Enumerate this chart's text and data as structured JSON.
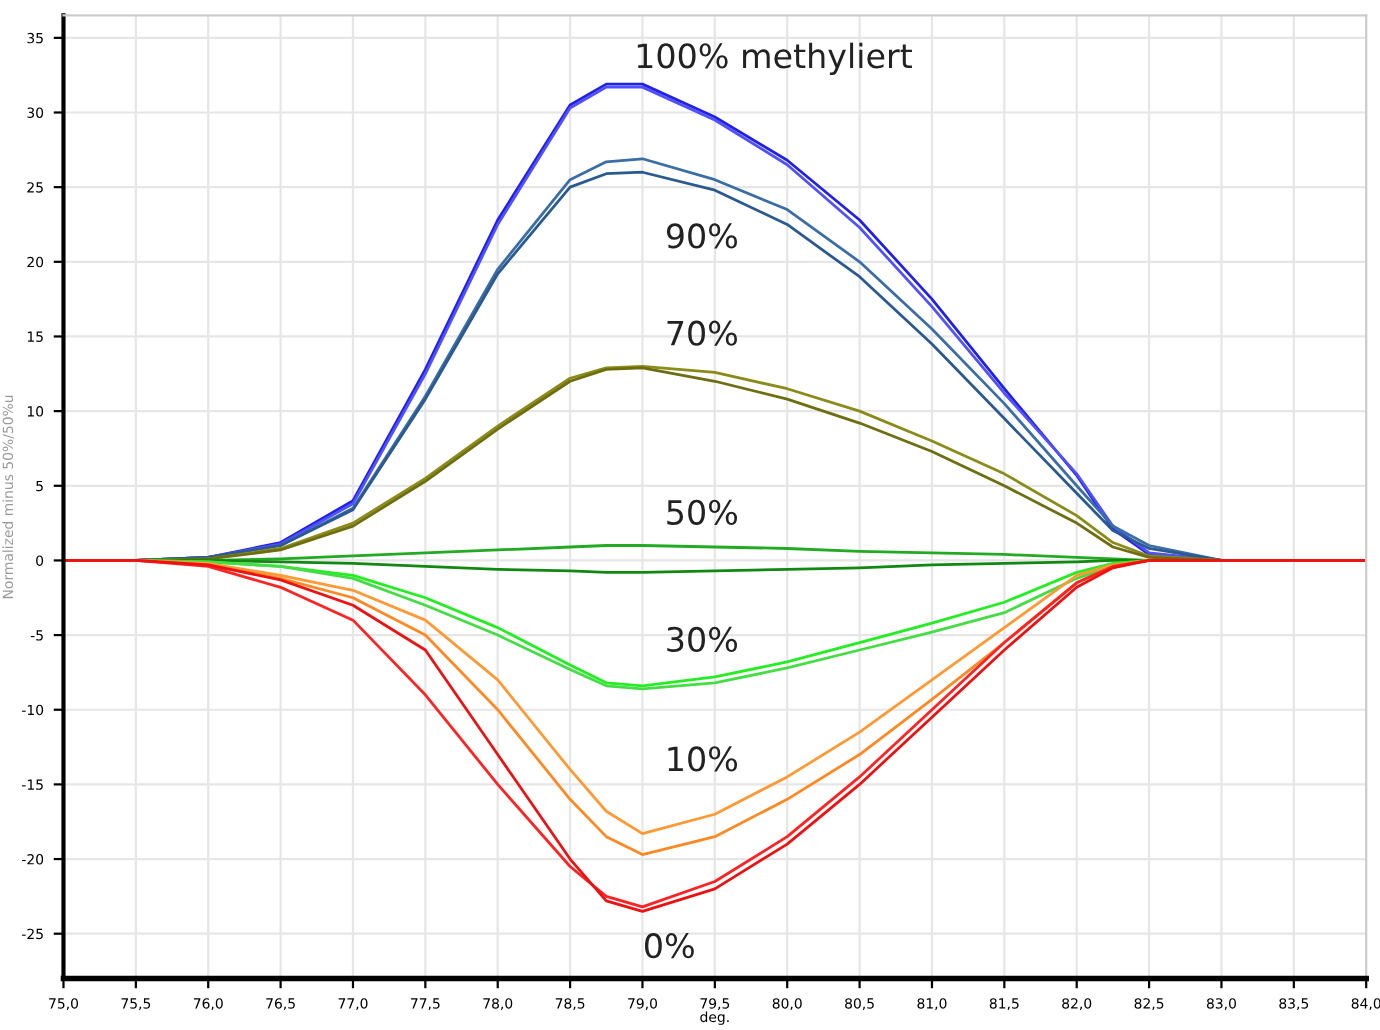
{
  "chart_data": {
    "type": "line",
    "xlabel": "deg.",
    "ylabel": "Normalized minus 50%/50%u",
    "x": [
      75,
      75.5,
      76,
      76.5,
      77,
      77.5,
      78,
      78.5,
      78.75,
      79,
      79.5,
      80,
      80.5,
      81,
      81.5,
      82,
      82.25,
      82.5,
      83,
      84
    ],
    "series": [
      {
        "color": "#2020e8",
        "values": [
          0,
          0,
          0.2,
          1.2,
          4,
          12.8,
          22.8,
          30.5,
          31.9,
          31.9,
          29.7,
          26.8,
          22.8,
          17.5,
          11.5,
          5.7,
          2.1,
          0.4,
          0,
          0
        ]
      },
      {
        "color": "#5050ff",
        "values": [
          0,
          0,
          0.2,
          1.1,
          3.8,
          12.5,
          22.5,
          30.3,
          31.7,
          31.7,
          29.5,
          26.5,
          22.3,
          17,
          11.2,
          5.8,
          2.3,
          0.5,
          0,
          0
        ]
      },
      {
        "color": "#3a6ea5",
        "values": [
          0,
          0,
          0.2,
          1,
          3.5,
          11,
          19.5,
          25.5,
          26.7,
          26.9,
          25.5,
          23.5,
          20,
          15.5,
          10.5,
          5,
          2.3,
          1,
          0,
          0
        ]
      },
      {
        "color": "#2a5a90",
        "values": [
          0,
          0,
          0.2,
          1,
          3.4,
          10.8,
          19.2,
          25,
          25.9,
          26,
          24.8,
          22.5,
          19,
          14.5,
          9.5,
          4.5,
          2,
          0.8,
          0,
          0
        ]
      },
      {
        "color": "#8b8b1a",
        "values": [
          0,
          0,
          0.1,
          0.8,
          2.5,
          5.5,
          9,
          12.2,
          12.9,
          13,
          12.6,
          11.5,
          10,
          8,
          5.8,
          3,
          1.2,
          0.3,
          0,
          0
        ]
      },
      {
        "color": "#6e6e10",
        "values": [
          0,
          0,
          0.1,
          0.7,
          2.3,
          5.3,
          8.8,
          12,
          12.8,
          12.9,
          12,
          10.8,
          9.2,
          7.3,
          5,
          2.5,
          0.9,
          0.2,
          0,
          0
        ]
      },
      {
        "color": "#22aa22",
        "values": [
          0,
          0,
          0,
          0.1,
          0.3,
          0.5,
          0.7,
          0.9,
          1,
          1,
          0.9,
          0.8,
          0.6,
          0.5,
          0.4,
          0.2,
          0.1,
          0,
          0,
          0
        ]
      },
      {
        "color": "#118811",
        "values": [
          0,
          0,
          0,
          -0.1,
          -0.2,
          -0.4,
          -0.6,
          -0.7,
          -0.8,
          -0.8,
          -0.7,
          -0.6,
          -0.5,
          -0.3,
          -0.2,
          -0.1,
          0,
          0,
          0,
          0
        ]
      },
      {
        "color": "#22ee22",
        "values": [
          0,
          0,
          -0.1,
          -0.4,
          -1,
          -2.5,
          -4.5,
          -7,
          -8.2,
          -8.4,
          -7.8,
          -6.8,
          -5.5,
          -4.2,
          -2.8,
          -0.8,
          -0.2,
          0,
          0,
          0
        ]
      },
      {
        "color": "#44dd44",
        "values": [
          0,
          0,
          -0.1,
          -0.4,
          -1.2,
          -3,
          -5,
          -7.3,
          -8.4,
          -8.6,
          -8.2,
          -7.2,
          -6,
          -4.8,
          -3.5,
          -1.2,
          -0.4,
          0,
          0,
          0
        ]
      },
      {
        "color": "#ff9933",
        "values": [
          0,
          0,
          -0.2,
          -1,
          -2,
          -4,
          -8,
          -14,
          -16.8,
          -18.3,
          -17,
          -14.5,
          -11.5,
          -8,
          -4.5,
          -1,
          -0.3,
          0,
          0,
          0
        ]
      },
      {
        "color": "#ff8822",
        "values": [
          0,
          0,
          -0.3,
          -1.2,
          -2.5,
          -5,
          -10,
          -16,
          -18.5,
          -19.7,
          -18.5,
          -16,
          -13,
          -9.3,
          -5.5,
          -1.5,
          -0.4,
          0,
          0,
          0
        ]
      },
      {
        "color": "#ff2222",
        "values": [
          0,
          0,
          -0.4,
          -1.8,
          -4,
          -9,
          -15,
          -20.5,
          -22.5,
          -23.2,
          -21.5,
          -18.5,
          -14.5,
          -10,
          -5.5,
          -1.5,
          -0.4,
          0,
          0,
          0
        ]
      },
      {
        "color": "#ee1111",
        "values": [
          0,
          0,
          -0.3,
          -1.3,
          -3,
          -6,
          -13,
          -20,
          -22.8,
          -23.5,
          -22,
          -19,
          -15,
          -10.5,
          -6,
          -1.8,
          -0.5,
          0,
          0,
          0
        ]
      }
    ],
    "xlim": [
      75,
      84
    ],
    "xticks": [
      {
        "value": 75,
        "label": "75,0"
      },
      {
        "value": 75.5,
        "label": "75,5"
      },
      {
        "value": 76,
        "label": "76,0"
      },
      {
        "value": 76.5,
        "label": "76,5"
      },
      {
        "value": 77,
        "label": "77,0"
      },
      {
        "value": 77.5,
        "label": "77,5"
      },
      {
        "value": 78,
        "label": "78,0"
      },
      {
        "value": 78.5,
        "label": "78,5"
      },
      {
        "value": 79,
        "label": "79,0"
      },
      {
        "value": 79.5,
        "label": "79,5"
      },
      {
        "value": 80,
        "label": "80,0"
      },
      {
        "value": 80.5,
        "label": "80,5"
      },
      {
        "value": 81,
        "label": "81,0"
      },
      {
        "value": 81.5,
        "label": "81,5"
      },
      {
        "value": 82,
        "label": "82,0"
      },
      {
        "value": 82.5,
        "label": "82,5"
      },
      {
        "value": 83,
        "label": "83,0"
      },
      {
        "value": 83.5,
        "label": "83,5"
      },
      {
        "value": 84,
        "label": "84,0"
      }
    ],
    "ylim": [
      -28,
      36.5
    ],
    "yticks": [
      -25,
      -20,
      -15,
      -10,
      -5,
      0,
      5,
      10,
      15,
      20,
      25,
      30,
      35
    ],
    "grid": true,
    "legend": false,
    "marker": "none",
    "line_style": "solid",
    "annotations": [
      "100% methyliert",
      "90%",
      "70%",
      "50%",
      "30%",
      "10%",
      "0%"
    ]
  }
}
